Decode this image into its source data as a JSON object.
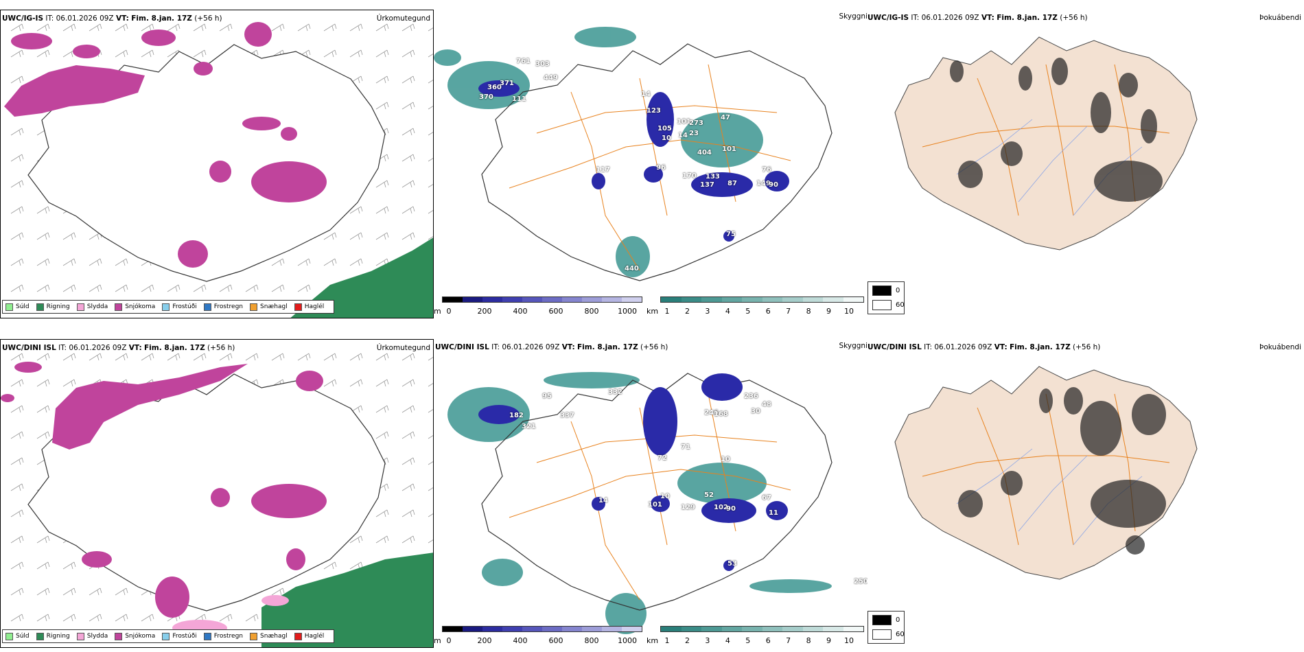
{
  "colors": {
    "sudd": "#90ee90",
    "rigning": "#2e8b57",
    "slydda": "#f4a6d7",
    "snjokoma": "#c0449c",
    "frostudi": "#87ceeb",
    "frostregn": "#2f78c4",
    "snaehagl": "#f0a030",
    "haglel": "#e21b1b",
    "cloud_teal": "#2f8f8a",
    "cloud_blue": "#2a2aa8",
    "road": "#e8821e",
    "land_bg": "#f3e1d2"
  },
  "rows": [
    {
      "model": "UWC/IG-IS",
      "it_label": "IT:",
      "it_value": "06.01.2026 09Z",
      "vt_label": "VT:",
      "vt_value": "Fim. 8.jan. 17Z",
      "lead": "(+56 h)",
      "panel_titles": [
        "Úrkomutegund",
        "Skyggni",
        "Þokuábendi"
      ],
      "numbers": [
        "761",
        "303",
        "449",
        "360",
        "371",
        "370",
        "111",
        "14",
        "123",
        "105",
        "101",
        "273",
        "10",
        "14",
        "23",
        "47",
        "404",
        "101",
        "96",
        "170",
        "133",
        "137",
        "87",
        "76",
        "149",
        "90",
        "117",
        "75",
        "440"
      ]
    },
    {
      "model": "UWC/DINI ISL",
      "it_label": "IT:",
      "it_value": "06.01.2026 09Z",
      "vt_label": "VT:",
      "vt_value": "Fim. 8.jan. 17Z",
      "lead": "(+56 h)",
      "panel_titles": [
        "Úrkomutegund",
        "Skyggni",
        "Þokuábendi"
      ],
      "numbers": [
        "95",
        "332",
        "182",
        "337",
        "321",
        "72",
        "236",
        "30",
        "48",
        "71",
        "246",
        "168",
        "10",
        "101",
        "10",
        "129",
        "52",
        "102",
        "90",
        "67",
        "11",
        "53",
        "250",
        "14"
      ]
    }
  ],
  "legend": {
    "items": [
      {
        "label": "Súld",
        "color": "#90ee90"
      },
      {
        "label": "Rigning",
        "color": "#2e8b57"
      },
      {
        "label": "Slydda",
        "color": "#f4a6d7"
      },
      {
        "label": "Snjókoma",
        "color": "#c0449c"
      },
      {
        "label": "Frostúði",
        "color": "#87ceeb"
      },
      {
        "label": "Frostregn",
        "color": "#2f78c4"
      },
      {
        "label": "Snæhagl",
        "color": "#f0a030"
      },
      {
        "label": "Haglél",
        "color": "#e21b1b"
      }
    ]
  },
  "scale_m": {
    "unit": "m",
    "ticks": [
      "0",
      "200",
      "400",
      "600",
      "800",
      "1000"
    ],
    "colors": [
      "#000000",
      "#1a1a80",
      "#2c2ca0",
      "#3f3fb0",
      "#5656bb",
      "#6c6cc4",
      "#8585cf",
      "#9d9dd8",
      "#b5b5e2",
      "#d0d0ee"
    ]
  },
  "scale_km": {
    "unit": "km",
    "ticks": [
      "1",
      "2",
      "3",
      "4",
      "5",
      "6",
      "7",
      "8",
      "9",
      "10"
    ],
    "colors": [
      "#2a7f7a",
      "#3a8c87",
      "#4d9994",
      "#62a6a1",
      "#78b3ae",
      "#8fc0bc",
      "#a6cdca",
      "#bfdbd8",
      "#d8e9e7",
      "#f2f8f7"
    ]
  },
  "cloud_legend": {
    "top_label": "0",
    "bottom_label": "60"
  }
}
